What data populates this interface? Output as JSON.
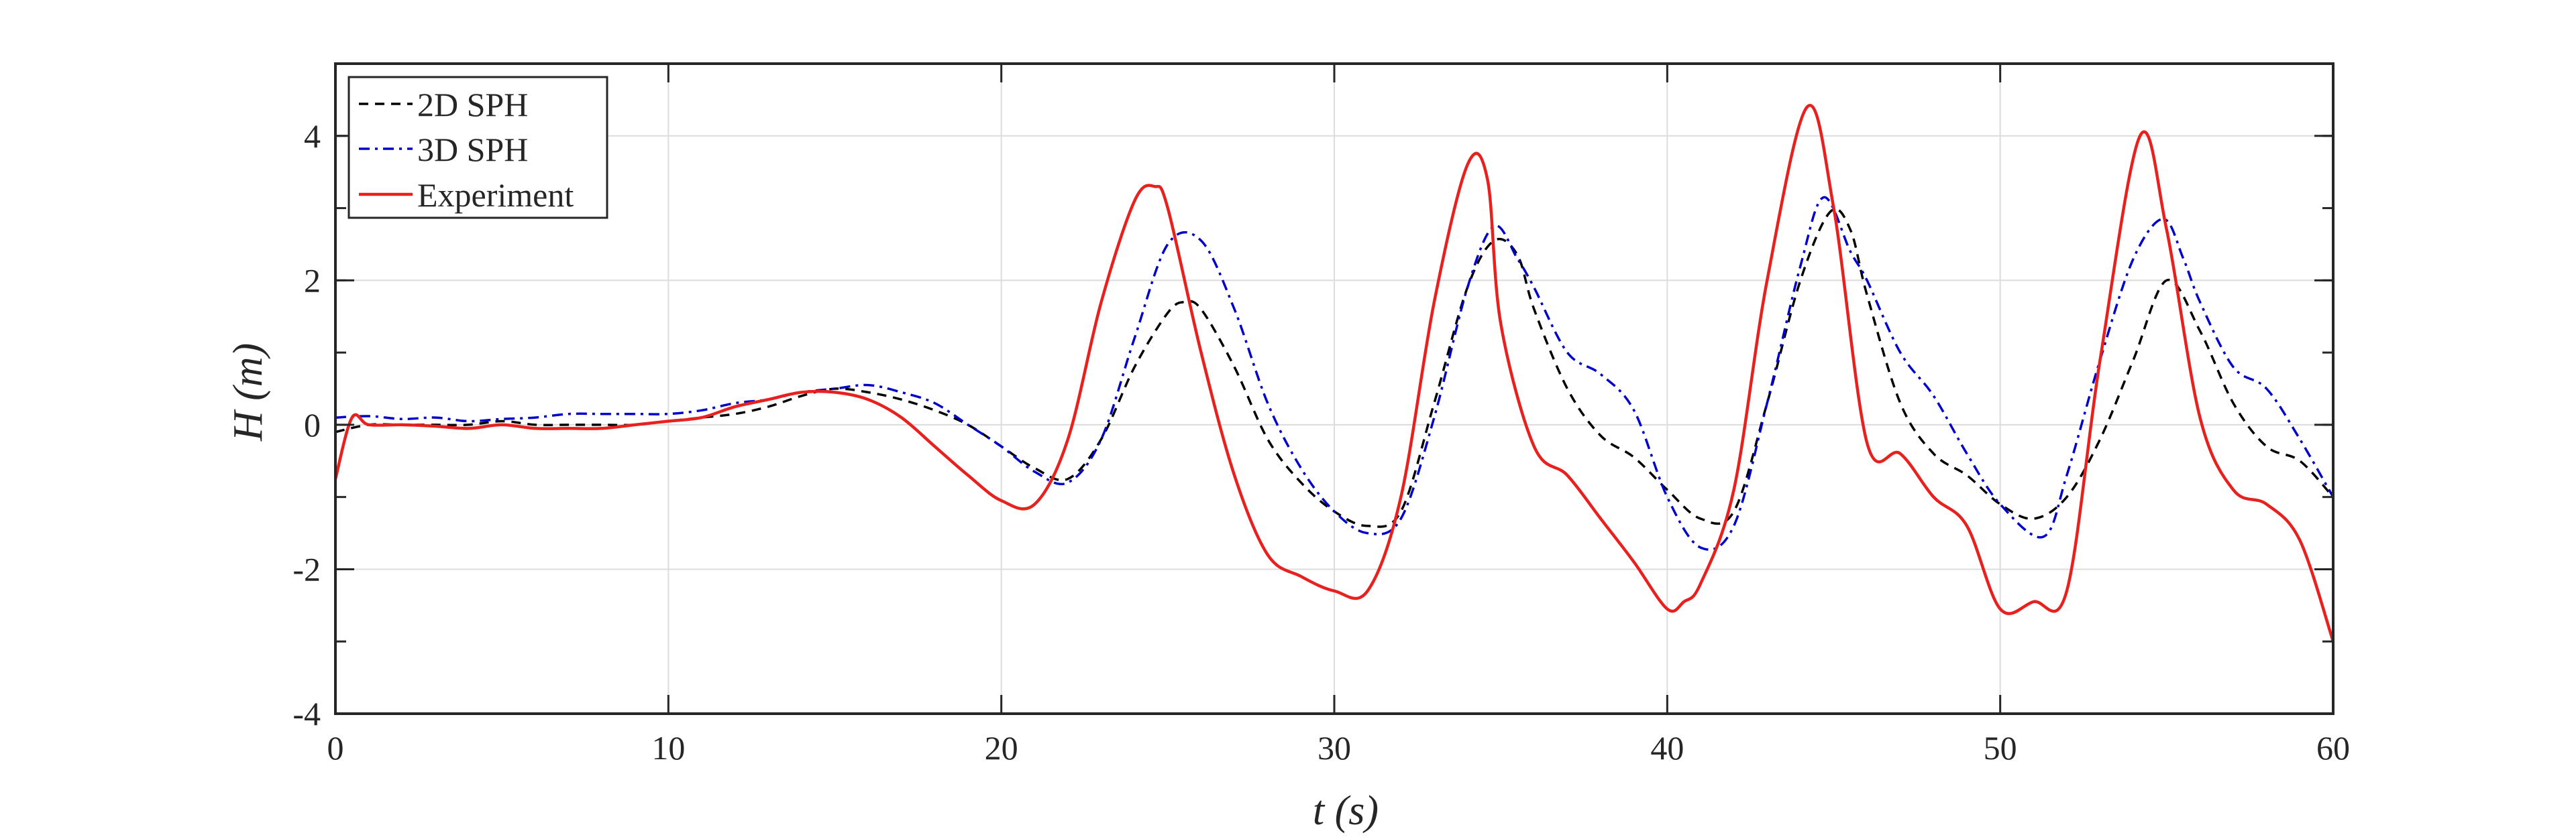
{
  "chart_data": {
    "type": "line",
    "title": "",
    "xlabel": "t (s)",
    "ylabel": "H (m)",
    "xlim": [
      0,
      60
    ],
    "ylim": [
      -4,
      5
    ],
    "xticks": [
      0,
      10,
      20,
      30,
      40,
      50,
      60
    ],
    "yticks": [
      -4,
      -2,
      0,
      2,
      4
    ],
    "xtick_labels": [
      "0",
      "10",
      "20",
      "30",
      "40",
      "50",
      "60"
    ],
    "ytick_labels": [
      "-4",
      "-2",
      "0",
      "2",
      "4"
    ],
    "grid": true,
    "legend_position": "top-left",
    "series": [
      {
        "name": "2D SPH",
        "color": "#000000",
        "style": "dashed",
        "x": [
          0,
          1,
          2,
          3,
          4,
          5,
          6,
          7,
          8,
          9,
          10,
          11,
          12,
          13,
          14,
          15,
          16,
          17,
          18,
          19,
          20,
          21,
          22,
          23,
          24,
          25,
          25.5,
          26,
          27,
          28,
          29,
          30,
          31,
          32,
          33,
          34,
          34.8,
          35.5,
          36,
          37,
          38,
          39,
          40,
          41,
          42,
          43,
          44,
          44.9,
          45.5,
          46,
          47,
          48,
          49,
          50,
          51,
          52,
          53,
          54,
          55,
          56,
          57,
          58,
          59,
          60
        ],
        "y": [
          -0.1,
          0.0,
          0.0,
          0.0,
          0.0,
          0.05,
          0.0,
          0.0,
          0.0,
          0.0,
          0.05,
          0.1,
          0.15,
          0.25,
          0.4,
          0.5,
          0.45,
          0.35,
          0.2,
          0.0,
          -0.3,
          -0.6,
          -0.75,
          -0.2,
          0.8,
          1.55,
          1.7,
          1.6,
          0.8,
          -0.2,
          -0.8,
          -1.2,
          -1.4,
          -1.2,
          0.3,
          1.9,
          2.55,
          2.35,
          1.6,
          0.5,
          -0.15,
          -0.45,
          -0.9,
          -1.3,
          -1.2,
          0.3,
          2.0,
          2.95,
          2.7,
          1.8,
          0.3,
          -0.4,
          -0.7,
          -1.1,
          -1.3,
          -1.0,
          -0.2,
          0.9,
          2.0,
          1.3,
          0.3,
          -0.3,
          -0.5,
          -1.0
        ]
      },
      {
        "name": "3D SPH",
        "color": "#0000cc",
        "style": "dash-dot",
        "x": [
          0,
          1,
          2,
          3,
          4,
          5,
          6,
          7,
          8,
          9,
          10,
          11,
          12,
          13,
          14,
          15,
          16,
          17,
          18,
          19,
          20,
          21,
          22,
          23,
          24,
          25,
          26,
          27,
          28,
          29,
          30,
          31,
          32,
          33,
          34,
          34.8,
          35.5,
          36,
          37,
          38,
          39,
          40,
          41,
          42,
          43,
          44,
          44.7,
          45.5,
          46,
          47,
          48,
          49,
          50,
          51.3,
          52,
          53,
          54,
          54.9,
          55.5,
          56,
          57,
          58,
          59,
          60
        ],
        "y": [
          0.1,
          0.12,
          0.08,
          0.1,
          0.05,
          0.08,
          0.1,
          0.15,
          0.15,
          0.15,
          0.15,
          0.2,
          0.3,
          0.35,
          0.45,
          0.5,
          0.55,
          0.45,
          0.3,
          0.0,
          -0.3,
          -0.65,
          -0.8,
          -0.2,
          1.2,
          2.5,
          2.55,
          1.6,
          0.3,
          -0.6,
          -1.2,
          -1.5,
          -1.3,
          0.1,
          1.9,
          2.75,
          2.3,
          1.9,
          1.0,
          0.7,
          0.2,
          -1.0,
          -1.7,
          -1.4,
          0.3,
          2.2,
          3.15,
          2.4,
          2.0,
          1.0,
          0.4,
          -0.4,
          -1.1,
          -1.55,
          -0.7,
          0.9,
          2.3,
          2.85,
          2.3,
          1.7,
          0.8,
          0.5,
          -0.2,
          -1.0
        ]
      },
      {
        "name": "Experiment",
        "color": "#e8211e",
        "style": "solid",
        "x": [
          0,
          0.5,
          1,
          2,
          3,
          4,
          5,
          6,
          7,
          8,
          9,
          10,
          11,
          12,
          13,
          14,
          15,
          16,
          17,
          18,
          19,
          20,
          21,
          22,
          23,
          24,
          24.6,
          25,
          26,
          27,
          28,
          29,
          30,
          31,
          32,
          33,
          34,
          34.6,
          35,
          36,
          37,
          38,
          39,
          40,
          40.5,
          41,
          42,
          43,
          44.2,
          45,
          46,
          47,
          48,
          49,
          50,
          51,
          52,
          53,
          54.2,
          55,
          56,
          57,
          58,
          59,
          60
        ],
        "y": [
          -0.75,
          0.1,
          0.0,
          0.0,
          -0.02,
          -0.05,
          0.0,
          -0.05,
          -0.05,
          -0.05,
          0.0,
          0.05,
          0.1,
          0.25,
          0.35,
          0.45,
          0.45,
          0.35,
          0.1,
          -0.3,
          -0.7,
          -1.05,
          -1.1,
          -0.2,
          1.7,
          3.1,
          3.3,
          3.0,
          1.0,
          -0.7,
          -1.8,
          -2.1,
          -2.3,
          -2.3,
          -1.0,
          1.7,
          3.6,
          3.4,
          1.4,
          -0.3,
          -0.7,
          -1.3,
          -1.9,
          -2.55,
          -2.45,
          -2.2,
          -0.9,
          2.0,
          4.4,
          3.0,
          -0.25,
          -0.4,
          -1.0,
          -1.4,
          -2.55,
          -2.45,
          -2.3,
          0.9,
          4.0,
          2.7,
          0.1,
          -0.9,
          -1.1,
          -1.6,
          -3.0
        ]
      }
    ]
  }
}
